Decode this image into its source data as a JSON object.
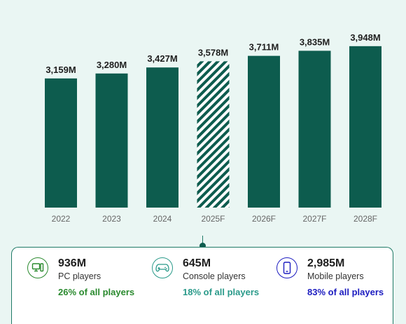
{
  "chart_data": {
    "type": "bar",
    "categories": [
      "2022",
      "2023",
      "2024",
      "2025F",
      "2026F",
      "2027F",
      "2028F"
    ],
    "values": [
      3159,
      3280,
      3427,
      3578,
      3711,
      3835,
      3948
    ],
    "value_labels": [
      "3,159M",
      "3,280M",
      "3,427M",
      "3,578M",
      "3,711M",
      "3,835M",
      "3,948M"
    ],
    "highlighted_category": "2025F",
    "ylim": [
      0,
      4000
    ],
    "grid": false,
    "bar_color": "#0d5c4e",
    "highlight_style": "hatched"
  },
  "segments": [
    {
      "icon": "pc-icon",
      "value": "936M",
      "name": "PC players",
      "share": "26% of all players",
      "color": "#2a8a2e"
    },
    {
      "icon": "gamepad-icon",
      "value": "645M",
      "name": "Console players",
      "share": "18% of all players",
      "color": "#2a9a8a"
    },
    {
      "icon": "mobile-icon",
      "value": "2,985M",
      "name": "Mobile players",
      "share": "83% of all players",
      "color": "#1c1cc0"
    }
  ]
}
